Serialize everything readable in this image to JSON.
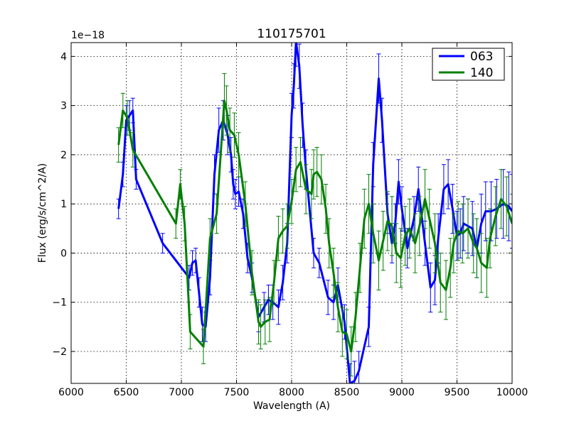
{
  "chart_data": {
    "type": "line",
    "title": "110175701",
    "xlabel": "Wavelength (A)",
    "ylabel": "Flux (erg/s/cm^2/A)",
    "offset_label": "1e−18",
    "xlim": [
      6000,
      10000
    ],
    "ylim": [
      -2.65,
      4.28
    ],
    "xticks": [
      6000,
      6500,
      7000,
      7500,
      8000,
      8500,
      9000,
      9500,
      10000
    ],
    "yticks": [
      -2,
      -1,
      0,
      1,
      2,
      3,
      4
    ],
    "ytick_labels": [
      "−2",
      "−1",
      "0",
      "1",
      "2",
      "3",
      "4"
    ],
    "grid": true,
    "legend_position": "top-right",
    "series": [
      {
        "name": "063",
        "color": "#0000ff",
        "x": [
          6430,
          6470,
          6500,
          6530,
          6560,
          6590,
          6830,
          7070,
          7100,
          7130,
          7160,
          7190,
          7220,
          7260,
          7300,
          7340,
          7380,
          7420,
          7450,
          7470,
          7490,
          7520,
          7560,
          7600,
          7640,
          7700,
          7750,
          7790,
          7830,
          7880,
          7920,
          7960,
          8000,
          8020,
          8040,
          8070,
          8100,
          8130,
          8200,
          8250,
          8330,
          8380,
          8420,
          8480,
          8530,
          8570,
          8610,
          8700,
          8740,
          8790,
          8820,
          8870,
          8910,
          8940,
          8970,
          9000,
          9050,
          9110,
          9150,
          9210,
          9260,
          9300,
          9330,
          9380,
          9420,
          9460,
          9500,
          9530,
          9560,
          9600,
          9640,
          9680,
          9720,
          9760,
          9810,
          9860,
          9920,
          9970,
          10000
        ],
        "y": [
          0.9,
          1.6,
          2.7,
          2.8,
          2.9,
          1.5,
          0.2,
          -0.5,
          -0.2,
          -0.15,
          -0.8,
          -1.45,
          -1.5,
          -0.5,
          1.6,
          2.5,
          2.7,
          2.4,
          2.0,
          1.4,
          1.2,
          1.25,
          0.8,
          -0.1,
          -0.5,
          -1.3,
          -1.1,
          -0.95,
          -1.0,
          -1.1,
          -0.6,
          0.2,
          2.8,
          3.4,
          4.3,
          3.8,
          2.6,
          1.7,
          0.0,
          -0.2,
          -0.9,
          -1.0,
          -0.65,
          -1.4,
          -2.65,
          -2.6,
          -2.4,
          -1.5,
          1.8,
          3.55,
          2.7,
          0.8,
          0.2,
          0.6,
          1.45,
          0.9,
          0.1,
          0.7,
          1.3,
          0.2,
          -0.7,
          -0.55,
          0.3,
          1.3,
          1.4,
          0.9,
          0.35,
          0.4,
          0.6,
          0.55,
          0.5,
          0.1,
          0.6,
          0.85,
          0.85,
          0.9,
          1.0,
          0.95,
          0.85
        ],
        "err": [
          0.2,
          0.25,
          0.3,
          0.3,
          0.25,
          0.2,
          0.2,
          0.25,
          0.25,
          0.25,
          0.3,
          0.35,
          0.3,
          0.35,
          0.4,
          0.45,
          0.4,
          0.4,
          0.35,
          0.3,
          0.3,
          0.3,
          0.3,
          0.3,
          0.3,
          0.3,
          0.3,
          0.3,
          0.35,
          0.35,
          0.35,
          0.4,
          0.45,
          0.45,
          0.5,
          0.45,
          0.45,
          0.4,
          0.3,
          0.3,
          0.35,
          0.35,
          0.35,
          0.35,
          0.4,
          0.4,
          0.4,
          0.4,
          0.45,
          0.5,
          0.45,
          0.4,
          0.4,
          0.4,
          0.45,
          0.45,
          0.4,
          0.45,
          0.45,
          0.45,
          0.5,
          0.5,
          0.5,
          0.5,
          0.5,
          0.5,
          0.5,
          0.5,
          0.55,
          0.55,
          0.55,
          0.6,
          0.6,
          0.6,
          0.6,
          0.6,
          0.7,
          0.7,
          0.75
        ]
      },
      {
        "name": "140",
        "color": "#008000",
        "x": [
          6430,
          6470,
          6510,
          6560,
          6950,
          6990,
          7030,
          7080,
          7200,
          7260,
          7320,
          7390,
          7410,
          7440,
          7480,
          7520,
          7580,
          7640,
          7700,
          7720,
          7760,
          7800,
          7840,
          7880,
          7920,
          7960,
          8000,
          8040,
          8080,
          8130,
          8180,
          8200,
          8230,
          8270,
          8310,
          8340,
          8380,
          8420,
          8460,
          8500,
          8540,
          8580,
          8620,
          8660,
          8700,
          8740,
          8790,
          8830,
          8870,
          8910,
          8950,
          8990,
          9030,
          9070,
          9120,
          9160,
          9210,
          9250,
          9300,
          9350,
          9400,
          9440,
          9470,
          9510,
          9550,
          9600,
          9650,
          9680,
          9720,
          9770,
          9800,
          9850,
          9900,
          9950,
          10000
        ],
        "y": [
          2.2,
          2.9,
          2.75,
          2.1,
          0.6,
          1.4,
          0.6,
          -1.6,
          -1.9,
          0.3,
          0.8,
          3.1,
          2.9,
          2.5,
          2.4,
          2.0,
          1.0,
          -0.4,
          -1.4,
          -1.5,
          -1.4,
          -1.35,
          -0.6,
          0.3,
          0.45,
          0.55,
          1.05,
          1.7,
          1.85,
          1.3,
          1.2,
          1.6,
          1.65,
          1.5,
          0.9,
          0.2,
          -0.4,
          -1.1,
          -1.6,
          -1.65,
          -2.0,
          -1.3,
          -0.3,
          0.7,
          1.0,
          0.4,
          -0.15,
          0.25,
          0.65,
          0.55,
          0.0,
          -0.1,
          0.35,
          0.5,
          0.2,
          0.55,
          1.1,
          0.7,
          0.2,
          -0.6,
          -0.75,
          -0.3,
          0.2,
          0.45,
          0.4,
          0.5,
          0.2,
          0.1,
          -0.2,
          -0.3,
          0.3,
          0.75,
          1.1,
          0.95,
          0.6
        ],
        "err": [
          0.35,
          0.35,
          0.35,
          0.35,
          0.3,
          0.3,
          0.35,
          0.35,
          0.35,
          0.4,
          0.4,
          0.55,
          0.5,
          0.45,
          0.45,
          0.45,
          0.45,
          0.45,
          0.45,
          0.45,
          0.45,
          0.45,
          0.45,
          0.45,
          0.45,
          0.45,
          0.45,
          0.45,
          0.5,
          0.5,
          0.5,
          0.5,
          0.5,
          0.5,
          0.5,
          0.5,
          0.5,
          0.5,
          0.5,
          0.5,
          0.5,
          0.5,
          0.5,
          0.6,
          0.6,
          0.6,
          0.6,
          0.6,
          0.6,
          0.6,
          0.6,
          0.6,
          0.6,
          0.6,
          0.6,
          0.6,
          0.6,
          0.6,
          0.6,
          0.6,
          0.6,
          0.6,
          0.6,
          0.6,
          0.6,
          0.6,
          0.6,
          0.6,
          0.6,
          0.6,
          0.6,
          0.6,
          0.6,
          0.6,
          0.6
        ]
      }
    ]
  }
}
